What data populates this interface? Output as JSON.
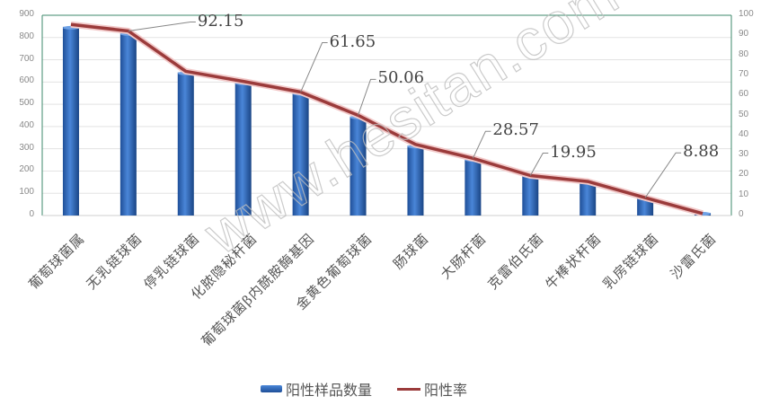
{
  "chart_data": {
    "type": "bar+line",
    "title": "",
    "categories": [
      "葡萄球菌属",
      "无乳链球菌",
      "停乳链球菌",
      "化脓隐秘杆菌",
      "葡萄球菌β内酰胺酶基因",
      "金黄色葡萄球菌",
      "肠球菌",
      "大肠杆菌",
      "克雷伯氏菌",
      "牛棒状杆菌",
      "乳房链球菌",
      "沙雷氏菌"
    ],
    "series": [
      {
        "name": "阳性样品数量",
        "type": "bar",
        "axis": "left",
        "color": "#2f6fc4",
        "values": [
          848,
          820,
          643,
          598,
          551,
          445,
          314,
          254,
          181,
          153,
          81,
          12
        ]
      },
      {
        "name": "阳性率",
        "type": "line",
        "axis": "right",
        "color": "#9b3b3b",
        "values": [
          95.4,
          92.15,
          72.0,
          67.0,
          61.65,
          50.06,
          35.5,
          28.57,
          19.95,
          17.0,
          8.88,
          1.0
        ]
      }
    ],
    "data_labels": [
      {
        "index": 1,
        "text": "92.15"
      },
      {
        "index": 4,
        "text": "61.65"
      },
      {
        "index": 5,
        "text": "50.06"
      },
      {
        "index": 7,
        "text": "28.57"
      },
      {
        "index": 8,
        "text": "19.95"
      },
      {
        "index": 10,
        "text": "8.88"
      }
    ],
    "left_axis": {
      "ylim": [
        0,
        900
      ],
      "ticks": [
        "0",
        "100",
        "200",
        "300",
        "400",
        "500",
        "600",
        "700",
        "800",
        "900"
      ]
    },
    "right_axis": {
      "ylim": [
        0,
        100
      ],
      "ticks": [
        "0",
        "10",
        "20",
        "30",
        "40",
        "50",
        "60",
        "70",
        "80",
        "90",
        "100"
      ]
    },
    "xlabel": "",
    "ylabel": "",
    "grid": true,
    "legend_position": "bottom"
  },
  "legend": {
    "bar_label": "阳性样品数量",
    "line_label": "阳性率"
  },
  "watermark": "www.hesitan.com",
  "colors": {
    "bar_top": "#4a86d8",
    "bar_bottom": "#1f4f98",
    "line": "#9b3b3b",
    "line_glow": "#f2c9c9",
    "axis": "#3e8a6b",
    "grid": "#e3e3e3"
  }
}
